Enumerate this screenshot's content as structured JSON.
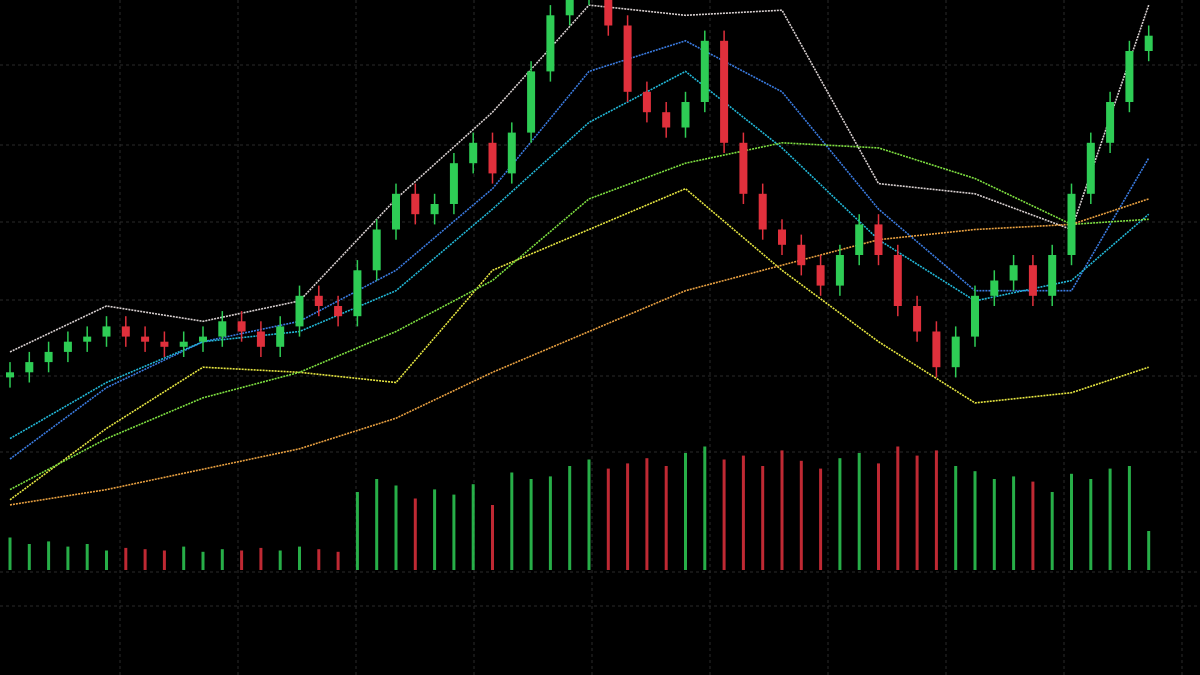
{
  "chart_data": {
    "type": "candlestick",
    "ylim": [
      0,
      100
    ],
    "up_color": "#2ecc55",
    "down_color": "#e0303c",
    "open": [
      26,
      27,
      29,
      31,
      33,
      34,
      36,
      34,
      33,
      32,
      33,
      34,
      37,
      35,
      32,
      36,
      42,
      40,
      38,
      47,
      55,
      62,
      58,
      60,
      68,
      72,
      66,
      74,
      86,
      97,
      101,
      102,
      95,
      82,
      78,
      75,
      80,
      92,
      72,
      62,
      55,
      52,
      48,
      44,
      50,
      56,
      50,
      40,
      35,
      28,
      34,
      42,
      45,
      48,
      42,
      50,
      62,
      72,
      80,
      90
    ],
    "high": [
      29,
      31,
      33,
      35,
      36,
      38,
      38,
      36,
      35,
      35,
      36,
      39,
      39,
      37,
      38,
      44,
      44,
      42,
      49,
      57,
      64,
      64,
      62,
      70,
      74,
      74,
      76,
      88,
      99,
      103,
      104,
      104,
      97,
      84,
      80,
      82,
      94,
      94,
      74,
      64,
      57,
      54,
      50,
      52,
      58,
      58,
      52,
      42,
      37,
      36,
      44,
      47,
      50,
      50,
      52,
      64,
      74,
      82,
      92,
      95
    ],
    "low": [
      24,
      25,
      27,
      29,
      31,
      32,
      32,
      31,
      30,
      30,
      31,
      32,
      33,
      30,
      30,
      34,
      38,
      36,
      36,
      45,
      53,
      56,
      56,
      58,
      66,
      64,
      64,
      72,
      84,
      95,
      99,
      93,
      80,
      76,
      73,
      73,
      78,
      70,
      60,
      53,
      50,
      46,
      42,
      42,
      48,
      48,
      38,
      33,
      26,
      26,
      32,
      40,
      43,
      40,
      40,
      48,
      60,
      70,
      78,
      88
    ],
    "close": [
      27,
      29,
      31,
      33,
      34,
      36,
      34,
      33,
      32,
      33,
      34,
      37,
      35,
      32,
      36,
      42,
      40,
      38,
      47,
      55,
      62,
      58,
      60,
      68,
      72,
      66,
      74,
      86,
      97,
      101,
      102,
      95,
      82,
      78,
      75,
      80,
      92,
      72,
      62,
      55,
      52,
      48,
      44,
      50,
      56,
      50,
      40,
      35,
      28,
      34,
      42,
      45,
      48,
      42,
      50,
      62,
      72,
      80,
      90,
      93
    ],
    "line_x": [
      0,
      5,
      10,
      15,
      20,
      25,
      30,
      35,
      40,
      45,
      50,
      55,
      59
    ],
    "series": [
      {
        "color": "#d8d0d0",
        "values": [
          31,
          40,
          37,
          41,
          61,
          78,
          99,
          97,
          98,
          64,
          62,
          55,
          99
        ]
      },
      {
        "color": "#3a7be0",
        "values": [
          10,
          24,
          33,
          37,
          47,
          63,
          86,
          92,
          82,
          59,
          43,
          43,
          69
        ]
      },
      {
        "color": "#22b8d8",
        "values": [
          14,
          25,
          33,
          35,
          43,
          59,
          76,
          86,
          71,
          53,
          41,
          45,
          58
        ]
      },
      {
        "color": "#e6e640",
        "values": [
          2,
          16,
          28,
          27,
          25,
          47,
          55,
          63,
          47,
          33,
          21,
          23,
          28
        ]
      },
      {
        "color": "#7ee040",
        "values": [
          4,
          14,
          22,
          27,
          35,
          45,
          61,
          68,
          72,
          71,
          65,
          56,
          57
        ]
      },
      {
        "color": "#e8a040",
        "values": [
          1,
          4,
          8,
          12,
          18,
          27,
          35,
          43,
          48,
          53,
          55,
          56,
          61
        ]
      }
    ],
    "volume_ylim": [
      0,
      100
    ],
    "volume": [
      25,
      20,
      22,
      18,
      20,
      15,
      17,
      16,
      15,
      18,
      14,
      16,
      15,
      17,
      15,
      18,
      16,
      14,
      60,
      70,
      65,
      55,
      62,
      58,
      66,
      50,
      75,
      70,
      72,
      80,
      85,
      78,
      82,
      86,
      80,
      90,
      95,
      85,
      88,
      80,
      92,
      84,
      78,
      86,
      90,
      82,
      95,
      88,
      92,
      80,
      76,
      70,
      72,
      68,
      60,
      74,
      70,
      78,
      80,
      30
    ]
  }
}
